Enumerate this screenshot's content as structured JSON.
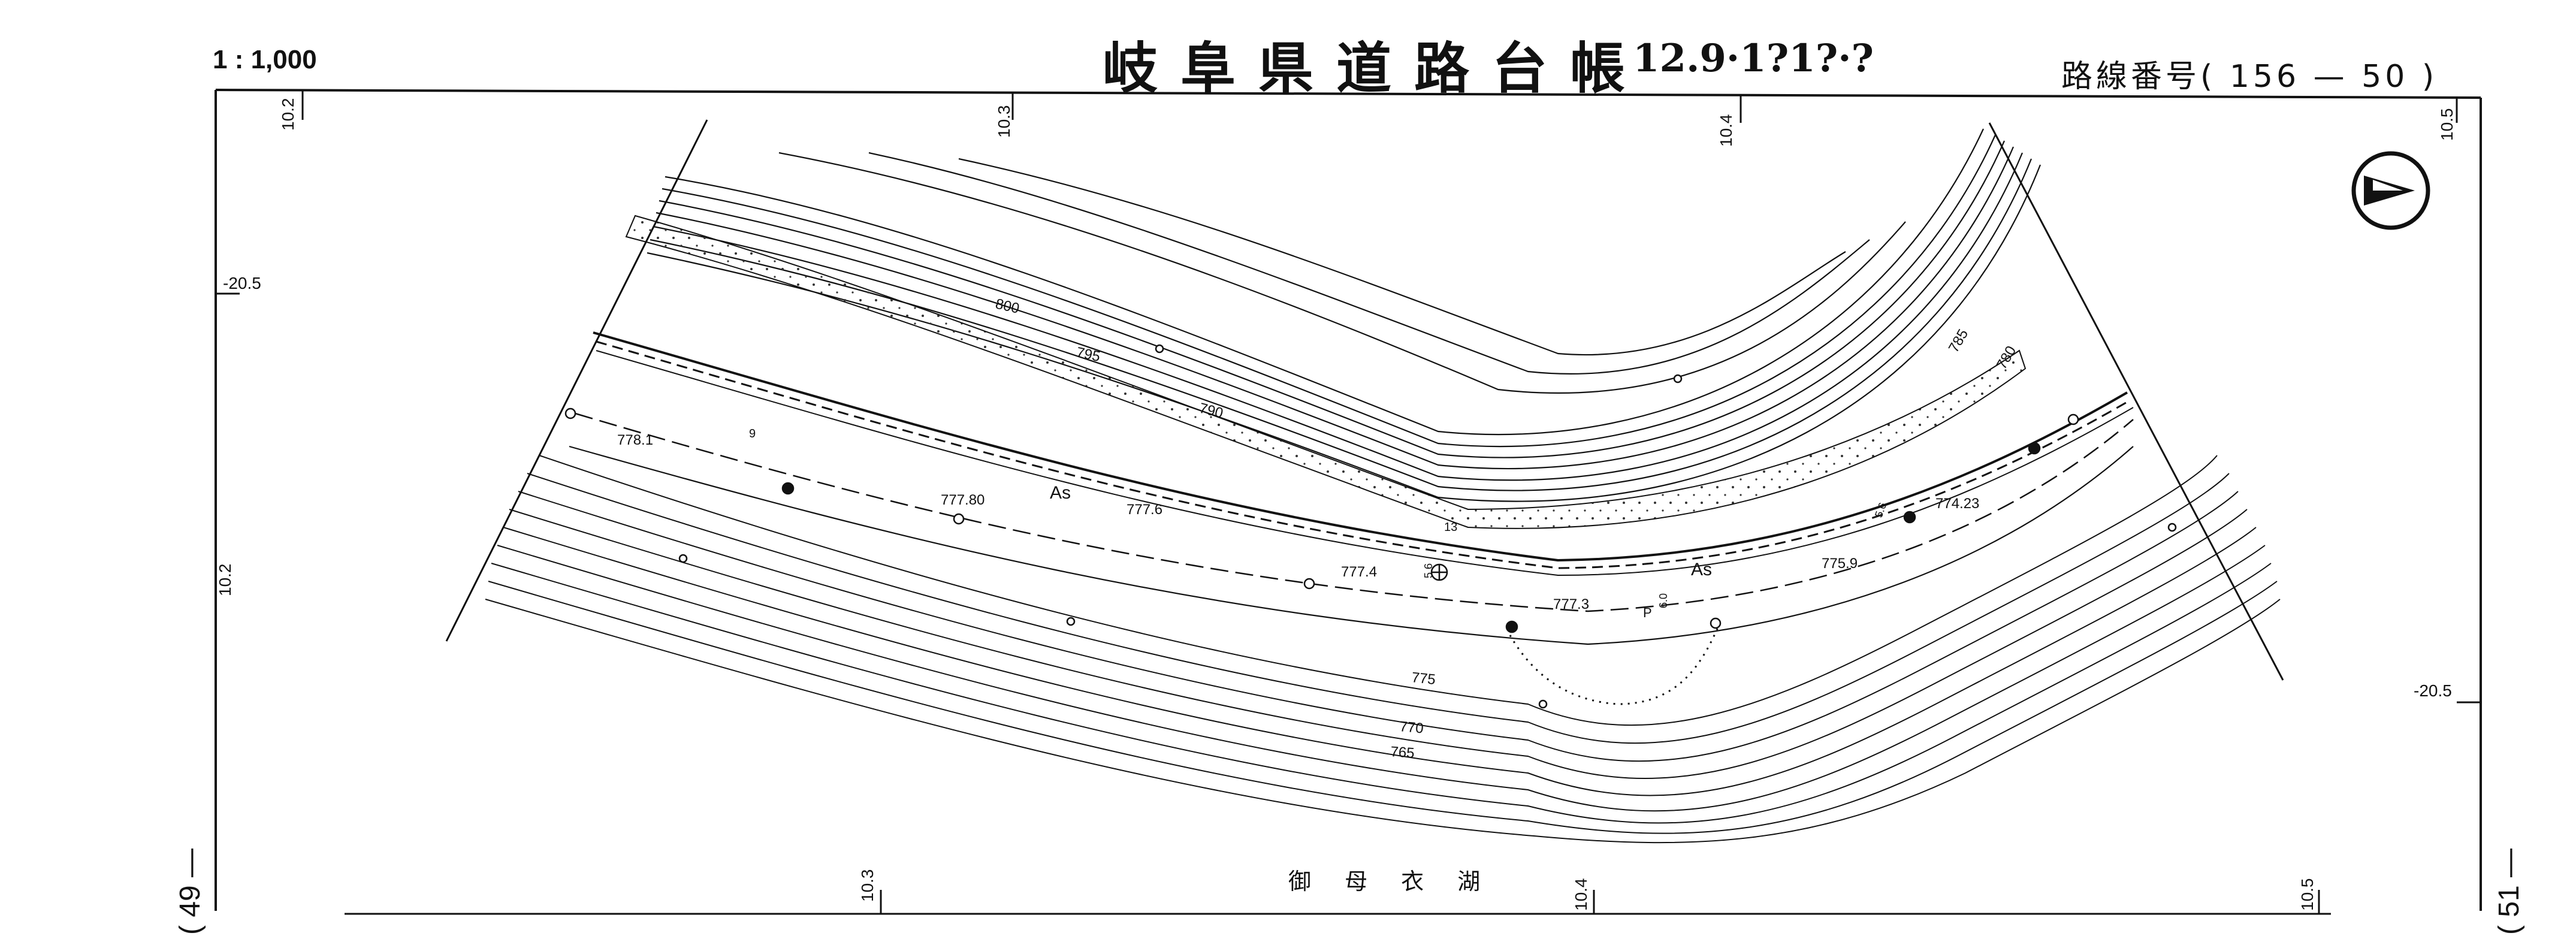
{
  "header": {
    "scale": "1 : 1,000",
    "title": "岐阜県道路台帳",
    "doc_no": "12.9·1?1?·?",
    "route": "路線番号( 156 — 50 )"
  },
  "sheet_refs": {
    "left": "( 49 —",
    "right": "( 51 —"
  },
  "map": {
    "lake_name": "御 母 衣 湖",
    "grid_top": [
      "10.2",
      "10.3",
      "10.4",
      "10.5"
    ],
    "grid_bottom": [
      "10.3",
      "10.4",
      "10.5"
    ],
    "grid_side": [
      "-20.5",
      "10.2",
      "-20.5"
    ],
    "contour_labels": [
      "800",
      "795",
      "790",
      "785",
      "780",
      "775",
      "770",
      "765"
    ],
    "elevations": [
      "778.1",
      "777.80",
      "777.6",
      "777.4",
      "777.3",
      "775.9",
      "774.23"
    ],
    "surface_labels": [
      "As",
      "As"
    ],
    "small_labels": [
      "9",
      "13",
      "5.6",
      "5.6",
      "6.0",
      "P"
    ],
    "north_arrow": "north-arrow-icon"
  }
}
